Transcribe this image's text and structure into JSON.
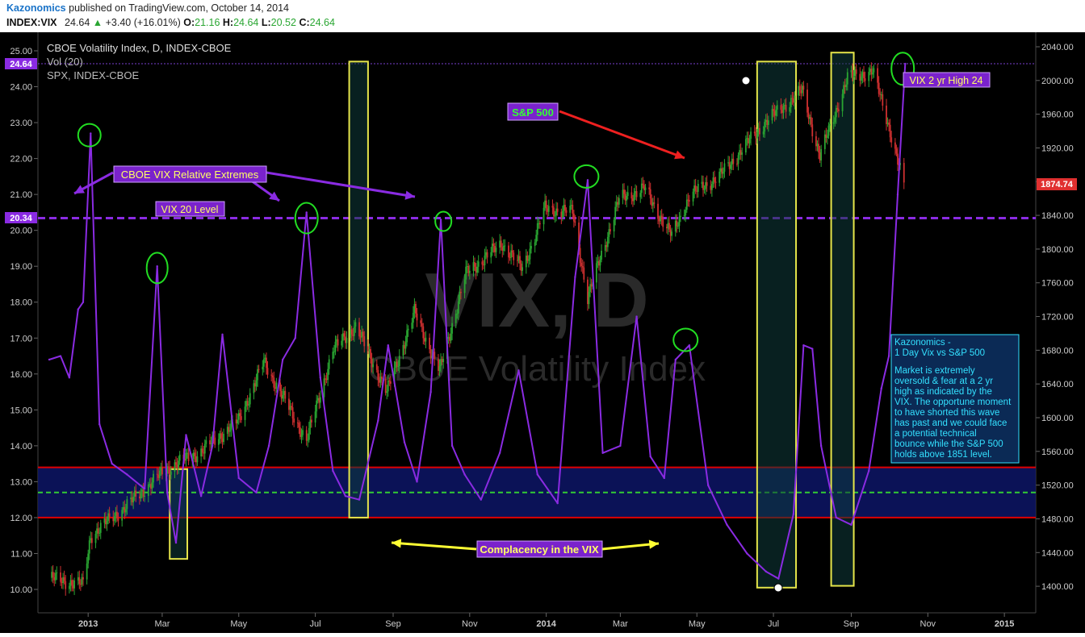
{
  "header": {
    "publisher": "Kazonomics",
    "published_text": "published on TradingView.com, October 14, 2014",
    "symbol": "INDEX:VIX",
    "last": "24.64",
    "change": "+3.40 (+16.01%)",
    "o_label": "O:",
    "o_value": "21.16",
    "h_label": "H:",
    "h_value": "24.64",
    "l_label": "L:",
    "l_value": "20.52",
    "c_label": "C:",
    "c_value": "24.64"
  },
  "legend": {
    "line1": "CBOE Volatility Index, D, INDEX-CBOE",
    "line2": "Vol (20)",
    "line3": "SPX, INDEX-CBOE"
  },
  "watermark": {
    "big": "VIX, D",
    "small": "CBOE Volatility Index"
  },
  "price_tags": {
    "vix_last": "24.64",
    "vix_20": "20.34",
    "spx_last": "1874.74"
  },
  "annotations": {
    "sp500": "S&P 500",
    "extremes": "CBOE VIX Relative Extremes",
    "vix20": "VIX 20 Level",
    "vix2yr": "VIX 2 yr High 24",
    "complacency": "Complacency in the VIX",
    "note_title": "Kazonomics -",
    "note_subtitle": "1 Day Vix vs S&P 500",
    "note_body": "Market is extremely oversold & fear at a 2 yr high as indicated by the VIX.  The opportune moment to have shorted this wave has past and we could face a potential technical bounce while the S&P 500 holds above 1851 level."
  },
  "colors": {
    "vix_line": "#8a2be2",
    "spx_up": "#2aa632",
    "spx_down": "#d03030",
    "zone_line": "#e00000",
    "zone_mid": "#33cc33",
    "level_20": "#8a2be2",
    "highlight_box": "#e5e54a",
    "circle": "#22dd22",
    "callout_bg": "#7a22cc",
    "arrow_red": "#ee2020",
    "arrow_yellow": "#ffff33",
    "plot_bg": "#000000"
  },
  "chart_data": {
    "type": "line",
    "title": "CBOE Volatility Index, D, INDEX-CBOE",
    "x_ticks": [
      "2013",
      "Mar",
      "May",
      "Jul",
      "Sep",
      "Nov",
      "2014",
      "Mar",
      "May",
      "Jul",
      "Sep",
      "Nov",
      "2015"
    ],
    "y_left": {
      "ticks": [
        "10.00",
        "11.00",
        "12.00",
        "13.00",
        "14.00",
        "15.00",
        "16.00",
        "17.00",
        "18.00",
        "19.00",
        "20.00",
        "21.00",
        "22.00",
        "23.00",
        "24.00",
        "25.00"
      ],
      "ylim": [
        10,
        25
      ]
    },
    "y_right": {
      "ticks": [
        "1400.00",
        "1440.00",
        "1480.00",
        "1520.00",
        "1560.00",
        "1600.00",
        "1640.00",
        "1680.00",
        "1720.00",
        "1760.00",
        "1800.00",
        "1840.00",
        "1880.00",
        "1920.00",
        "1960.00",
        "2000.00",
        "2040.00"
      ],
      "ylim": [
        1380,
        2040
      ]
    },
    "vix_series": {
      "name": "VIX",
      "x": [
        "2012-12-01",
        "2012-12-10",
        "2012-12-17",
        "2012-12-24",
        "2012-12-28",
        "2013-01-03",
        "2013-01-10",
        "2013-01-20",
        "2013-02-01",
        "2013-02-15",
        "2013-02-25",
        "2013-03-05",
        "2013-03-12",
        "2013-03-20",
        "2013-04-01",
        "2013-04-10",
        "2013-04-18",
        "2013-05-01",
        "2013-05-15",
        "2013-05-25",
        "2013-06-05",
        "2013-06-15",
        "2013-06-24",
        "2013-07-05",
        "2013-07-15",
        "2013-07-25",
        "2013-08-05",
        "2013-08-20",
        "2013-08-28",
        "2013-09-10",
        "2013-09-20",
        "2013-10-01",
        "2013-10-09",
        "2013-10-18",
        "2013-10-28",
        "2013-11-10",
        "2013-11-25",
        "2013-12-10",
        "2013-12-25",
        "2014-01-10",
        "2014-01-24",
        "2014-02-03",
        "2014-02-15",
        "2014-03-01",
        "2014-03-14",
        "2014-03-25",
        "2014-04-05",
        "2014-04-14",
        "2014-04-25",
        "2014-05-10",
        "2014-05-25",
        "2014-06-10",
        "2014-06-25",
        "2014-07-05",
        "2014-07-17",
        "2014-07-25",
        "2014-08-01",
        "2014-08-08",
        "2014-08-20",
        "2014-09-01",
        "2014-09-15",
        "2014-09-25",
        "2014-10-01",
        "2014-10-08",
        "2014-10-14"
      ],
      "values": [
        16.4,
        16.5,
        15.9,
        17.8,
        18.0,
        22.7,
        14.6,
        13.5,
        13.2,
        12.8,
        19.0,
        12.7,
        11.3,
        14.3,
        12.6,
        14.0,
        17.1,
        13.1,
        12.7,
        14.0,
        16.4,
        17.0,
        20.5,
        15.9,
        13.3,
        12.6,
        12.5,
        14.7,
        16.8,
        14.1,
        13.0,
        15.5,
        20.3,
        14.0,
        13.2,
        12.5,
        13.8,
        16.1,
        13.2,
        12.4,
        18.7,
        21.4,
        13.8,
        14.0,
        17.6,
        13.7,
        13.1,
        16.4,
        16.8,
        12.9,
        11.8,
        11.0,
        10.5,
        10.3,
        12.1,
        16.8,
        16.7,
        14.0,
        12.0,
        11.8,
        13.3,
        15.6,
        16.5,
        21.0,
        24.64
      ]
    },
    "spx_series": {
      "name": "SPX",
      "x": [
        "2012-12-01",
        "2012-12-28",
        "2013-01-03",
        "2013-02-01",
        "2013-03-05",
        "2013-04-01",
        "2013-05-01",
        "2013-05-21",
        "2013-06-24",
        "2013-07-15",
        "2013-08-02",
        "2013-08-27",
        "2013-09-18",
        "2013-10-08",
        "2013-10-29",
        "2013-11-27",
        "2013-12-13",
        "2013-12-31",
        "2014-01-22",
        "2014-02-03",
        "2014-02-28",
        "2014-03-20",
        "2014-04-11",
        "2014-04-25",
        "2014-05-20",
        "2014-06-24",
        "2014-07-24",
        "2014-08-07",
        "2014-08-29",
        "2014-09-18",
        "2014-10-01",
        "2014-10-13"
      ],
      "values": [
        1410,
        1402,
        1460,
        1496,
        1540,
        1560,
        1597,
        1666,
        1573,
        1680,
        1709,
        1630,
        1725,
        1655,
        1771,
        1807,
        1776,
        1848,
        1844,
        1742,
        1859,
        1872,
        1815,
        1863,
        1888,
        1950,
        1988,
        1910,
        2003,
        2011,
        1946,
        1874.74
      ]
    },
    "levels": [
      {
        "label": "VIX 20 Level",
        "value": 20.34
      }
    ],
    "zones": [
      {
        "from": 12.0,
        "to": 13.4
      },
      {
        "midline": 12.7
      }
    ]
  }
}
